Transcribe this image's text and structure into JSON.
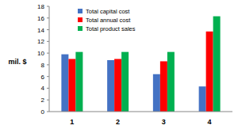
{
  "chart_data": {
    "type": "bar",
    "y_label": "mil. $",
    "categories": [
      "1",
      "2",
      "3",
      "4"
    ],
    "series": [
      {
        "name": "Total capital cost",
        "color": "#4472c4",
        "values": [
          9.8,
          8.8,
          6.4,
          4.3
        ]
      },
      {
        "name": "Total annual cost",
        "color": "#ff0000",
        "values": [
          9.0,
          9.0,
          8.6,
          13.7
        ]
      },
      {
        "name": "Total product sales",
        "color": "#00b050",
        "values": [
          10.2,
          10.2,
          10.2,
          16.3
        ]
      }
    ],
    "ylim": [
      0,
      18
    ],
    "yticks": [
      0,
      2,
      4,
      6,
      8,
      10,
      12,
      14,
      16,
      18
    ],
    "grid": false,
    "legend": "upper left"
  }
}
